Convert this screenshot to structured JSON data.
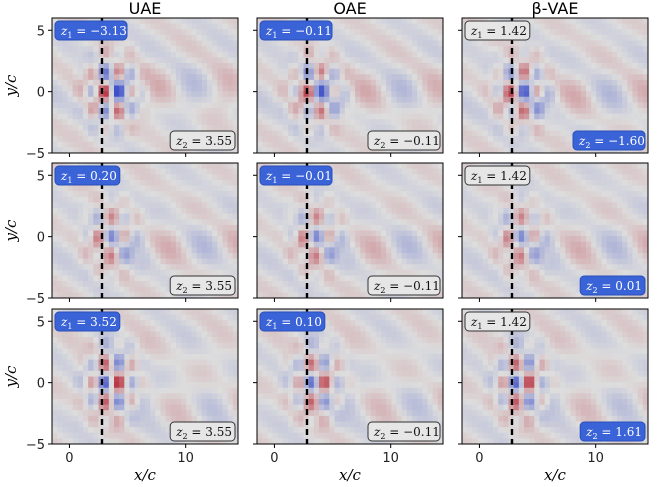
{
  "figure": {
    "columns": [
      "UAE",
      "OAE",
      "β-VAE"
    ],
    "xlabel": "x/c",
    "ylabel": "y/c",
    "xticks": [
      "0",
      "10"
    ],
    "yticks": [
      "5",
      "0",
      "−5"
    ]
  },
  "chart_data": {
    "type": "heatmap",
    "xlim": [
      -1.5,
      14.5
    ],
    "ylim": [
      -5,
      6
    ],
    "x_ticks": [
      0,
      10
    ],
    "y_ticks": [
      -5,
      0,
      5
    ],
    "reference_line": {
      "x": 2.8,
      "style": "dashed",
      "color": "#000000"
    },
    "colormap": "coolwarm (blue negative, red positive)",
    "highlight_color": "#3a63d7",
    "neutral_badge_color": "#e6e6e6",
    "panels": [
      {
        "row": 0,
        "col": 0,
        "method": "UAE",
        "z1": "−3.13",
        "z1_highlight": true,
        "z2": "3.55",
        "z2_highlight": false,
        "amplitude": 1.0,
        "phase": 0.0
      },
      {
        "row": 0,
        "col": 1,
        "method": "OAE",
        "z1": "−0.11",
        "z1_highlight": true,
        "z2": "−0.11",
        "z2_highlight": false,
        "amplitude": 0.85,
        "phase": 0.5
      },
      {
        "row": 0,
        "col": 2,
        "method": "β-VAE",
        "z1": "1.42",
        "z1_highlight": false,
        "z2": "−1.60",
        "z2_highlight": true,
        "amplitude": 0.9,
        "phase": 1.0
      },
      {
        "row": 1,
        "col": 0,
        "method": "UAE",
        "z1": "0.20",
        "z1_highlight": true,
        "z2": "3.55",
        "z2_highlight": false,
        "amplitude": 0.6,
        "phase": 1.6
      },
      {
        "row": 1,
        "col": 1,
        "method": "OAE",
        "z1": "−0.01",
        "z1_highlight": true,
        "z2": "−0.11",
        "z2_highlight": false,
        "amplitude": 0.6,
        "phase": 1.6
      },
      {
        "row": 1,
        "col": 2,
        "method": "β-VAE",
        "z1": "1.42",
        "z1_highlight": false,
        "z2": "0.01",
        "z2_highlight": true,
        "amplitude": 0.6,
        "phase": 1.7
      },
      {
        "row": 2,
        "col": 0,
        "method": "UAE",
        "z1": "3.52",
        "z1_highlight": true,
        "z2": "3.55",
        "z2_highlight": false,
        "amplitude": 1.0,
        "phase": 3.1
      },
      {
        "row": 2,
        "col": 1,
        "method": "OAE",
        "z1": "0.10",
        "z1_highlight": true,
        "z2": "−0.11",
        "z2_highlight": false,
        "amplitude": 0.85,
        "phase": 2.8
      },
      {
        "row": 2,
        "col": 2,
        "method": "β-VAE",
        "z1": "1.42",
        "z1_highlight": false,
        "z2": "1.61",
        "z2_highlight": true,
        "amplitude": 0.95,
        "phase": 2.9
      }
    ]
  }
}
